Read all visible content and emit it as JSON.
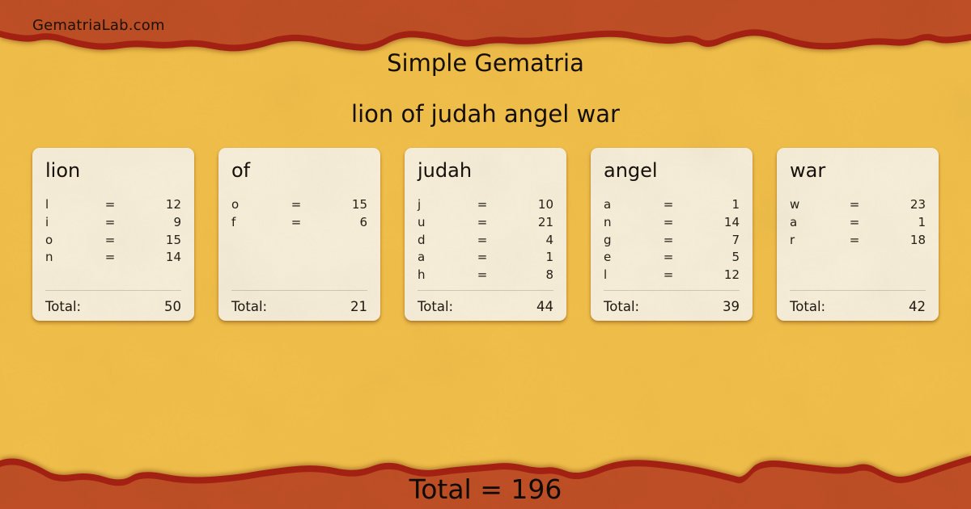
{
  "brand": "GematriaLab.com",
  "header": {
    "title": "Simple Gematria",
    "phrase": "lion of judah angel war"
  },
  "eq_sign": "=",
  "total_label": "Total:",
  "cards": [
    {
      "word": "lion",
      "total": "50",
      "letters": [
        {
          "ch": "l",
          "val": "12"
        },
        {
          "ch": "i",
          "val": "9"
        },
        {
          "ch": "o",
          "val": "15"
        },
        {
          "ch": "n",
          "val": "14"
        }
      ]
    },
    {
      "word": "of",
      "total": "21",
      "letters": [
        {
          "ch": "o",
          "val": "15"
        },
        {
          "ch": "f",
          "val": "6"
        }
      ]
    },
    {
      "word": "judah",
      "total": "44",
      "letters": [
        {
          "ch": "j",
          "val": "10"
        },
        {
          "ch": "u",
          "val": "21"
        },
        {
          "ch": "d",
          "val": "4"
        },
        {
          "ch": "a",
          "val": "1"
        },
        {
          "ch": "h",
          "val": "8"
        }
      ]
    },
    {
      "word": "angel",
      "total": "39",
      "letters": [
        {
          "ch": "a",
          "val": "1"
        },
        {
          "ch": "n",
          "val": "14"
        },
        {
          "ch": "g",
          "val": "7"
        },
        {
          "ch": "e",
          "val": "5"
        },
        {
          "ch": "l",
          "val": "12"
        }
      ]
    },
    {
      "word": "war",
      "total": "42",
      "letters": [
        {
          "ch": "w",
          "val": "23"
        },
        {
          "ch": "a",
          "val": "1"
        },
        {
          "ch": "r",
          "val": "18"
        }
      ]
    }
  ],
  "footer": {
    "grand_total": "Total = 196"
  },
  "colors": {
    "background": "#f2c04a",
    "band": "#c04f25",
    "band_edge": "#a52113",
    "card_bg": "#f8efda"
  }
}
